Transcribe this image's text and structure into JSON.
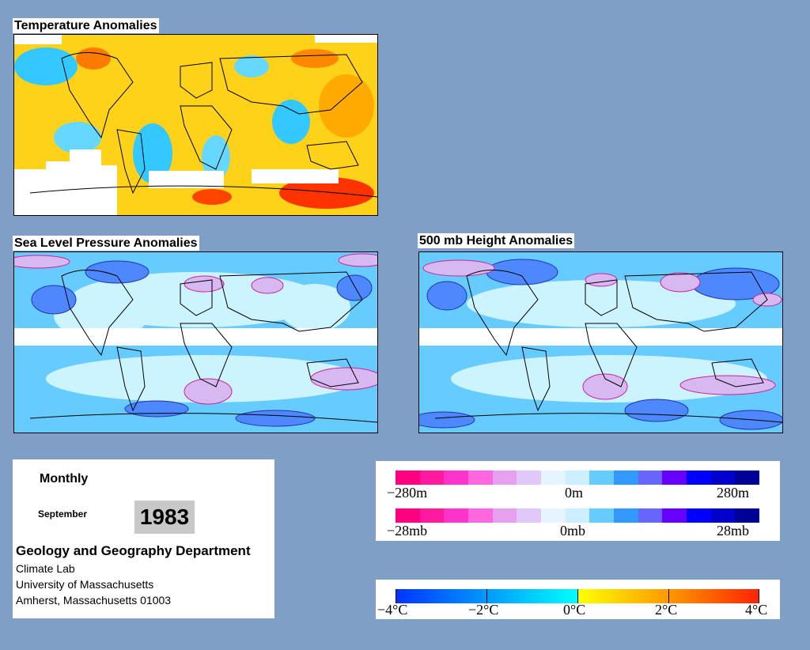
{
  "maps": {
    "temperature": {
      "title": "Temperature Anomalies"
    },
    "slp": {
      "title": "Sea Level Pressure Anomalies"
    },
    "height500": {
      "title": "500 mb Height Anomalies"
    }
  },
  "info": {
    "period": "Monthly",
    "month": "September",
    "year": "1983",
    "department": "Geology and Geography Department",
    "lab": "Climate Lab",
    "university": "University of Massachusetts",
    "address": "Amherst, Massachusetts 01003"
  },
  "legend_height": {
    "min": "−280m",
    "mid": "0m",
    "max": "280m",
    "colors": [
      "#ff0080",
      "#ff19a0",
      "#ff33cc",
      "#ff66e0",
      "#e6a0f0",
      "#e0c8f8",
      "#e6f4ff",
      "#cceeff",
      "#66ccff",
      "#3399ff",
      "#6666ff",
      "#6600ff",
      "#0000ff",
      "#0000cc",
      "#000099"
    ]
  },
  "legend_pressure": {
    "min": "−28mb",
    "mid": "0mb",
    "max": "28mb",
    "colors": [
      "#ff0080",
      "#ff19a0",
      "#ff33cc",
      "#ff66e0",
      "#e6a0f0",
      "#e0c8f8",
      "#e6f4ff",
      "#cceeff",
      "#66ccff",
      "#3399ff",
      "#6666ff",
      "#6600ff",
      "#0000ff",
      "#0000cc",
      "#000099"
    ]
  },
  "legend_temp": {
    "labels": [
      "−4°C",
      "−2°C",
      "0°C",
      "2°C",
      "4°C"
    ]
  },
  "colors": {
    "background": "#7f9fc6",
    "temp_cold": "#33b3ff",
    "temp_warm": "#ffcc00",
    "anom_light": "#ccf4ff",
    "anom_mid": "#66ccff",
    "anom_pos": "#d8b8f0"
  }
}
